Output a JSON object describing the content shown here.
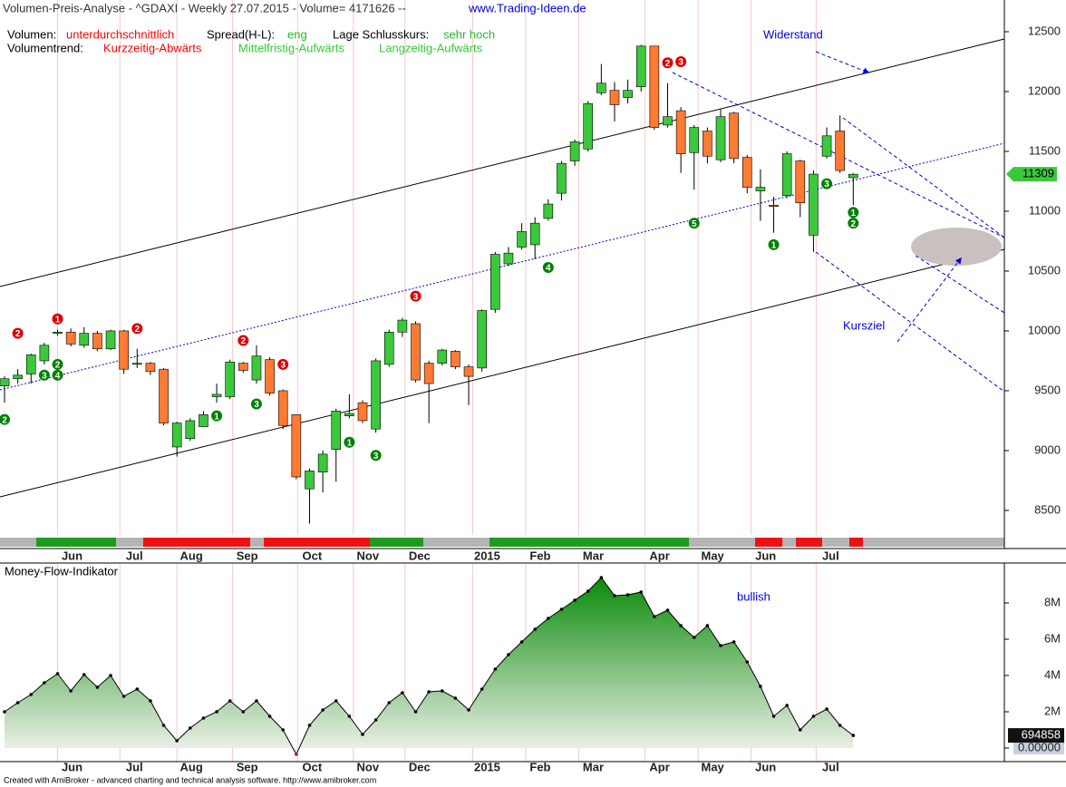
{
  "chart_data": [
    {
      "type": "candlestick",
      "title": "Volumen-Preis-Analyse - ^GDAXI - Weekly  27.07.2015 - Volume= 4171626 --",
      "source": "www.Trading-Ideen.de",
      "info": [
        [
          {
            "text": "Volumen:",
            "color": "#000000"
          },
          {
            "text": "unterdurchschnittlich",
            "color": "#ff0000"
          },
          {
            "text": "Spread(H-L):",
            "color": "#000000"
          },
          {
            "text": "eng",
            "color": "#22bb22"
          },
          {
            "text": "Lage Schlusskurs:",
            "color": "#000000"
          },
          {
            "text": "sehr hoch",
            "color": "#22bb22"
          }
        ],
        [
          {
            "text": "Volumentrend:",
            "color": "#000000"
          },
          {
            "text": "Kurzzeitig-Abwärts",
            "color": "#ff0000"
          },
          {
            "text": "Mittelfristig-Aufwärts",
            "color": "#33cc33"
          },
          {
            "text": "Langzeitig-Aufwärts",
            "color": "#33cc33"
          }
        ]
      ],
      "categories": [
        null,
        null,
        null,
        null,
        null,
        null,
        null,
        null,
        null,
        null,
        null,
        null,
        null,
        null,
        null,
        null,
        null,
        null,
        null,
        null,
        null,
        null,
        null,
        null,
        null,
        null,
        null,
        null,
        null,
        null,
        null,
        null,
        null,
        null,
        null,
        null,
        null,
        null,
        null,
        null,
        null,
        null,
        null,
        null,
        null,
        null,
        null,
        null,
        null,
        null,
        null,
        null,
        null,
        null,
        null,
        null,
        null,
        null,
        null,
        null,
        null,
        null,
        null,
        null,
        null
      ],
      "open": [
        9540,
        9600,
        9640,
        9750,
        9980,
        9990,
        9880,
        9980,
        9850,
        10000,
        9720,
        9730,
        9680,
        9030,
        9100,
        9200,
        9450,
        9450,
        9730,
        9590,
        9760,
        9500,
        9300,
        8680,
        8820,
        9010,
        9290,
        9400,
        9180,
        9720,
        9990,
        10060,
        9730,
        9730,
        9830,
        9700,
        9690,
        10180,
        10560,
        10700,
        10720,
        10940,
        11150,
        11420,
        11520,
        11990,
        12010,
        11950,
        12040,
        12380,
        11720,
        11840,
        11490,
        11670,
        11430,
        11820,
        11450,
        11170,
        11050,
        11130,
        11420,
        10800,
        11460,
        11670,
        11280
      ],
      "high": [
        9620,
        9680,
        9810,
        9900,
        10010,
        10020,
        10030,
        10000,
        10010,
        10010,
        9850,
        9740,
        9690,
        9240,
        9270,
        9330,
        9560,
        9760,
        9740,
        9880,
        9780,
        9510,
        9300,
        8850,
        9000,
        9350,
        9470,
        9420,
        9770,
        10010,
        10110,
        10080,
        9750,
        9850,
        9840,
        9720,
        10180,
        10660,
        10700,
        10900,
        10950,
        11100,
        11420,
        11600,
        11920,
        12230,
        12080,
        12100,
        12390,
        12380,
        12070,
        11870,
        11720,
        11700,
        11850,
        11830,
        11470,
        11350,
        11120,
        11500,
        11430,
        11340,
        11700,
        11800,
        11320
      ],
      "low": [
        9400,
        9560,
        9560,
        9720,
        9960,
        9870,
        9860,
        9830,
        9840,
        9640,
        9690,
        9630,
        9210,
        8950,
        9080,
        9200,
        9400,
        9430,
        9650,
        9560,
        9460,
        9180,
        8760,
        8390,
        8650,
        8740,
        9270,
        9230,
        9150,
        9700,
        9950,
        9570,
        9230,
        9710,
        9680,
        9380,
        9660,
        10150,
        10540,
        10680,
        10600,
        10920,
        11090,
        11380,
        11500,
        11970,
        11750,
        11900,
        12000,
        11680,
        11700,
        11320,
        11180,
        11400,
        11410,
        11400,
        11150,
        10920,
        10820,
        11110,
        10950,
        10660,
        11440,
        11320,
        11050
      ],
      "close": [
        9600,
        9630,
        9800,
        9880,
        9990,
        9890,
        9980,
        9850,
        10000,
        9680,
        9730,
        9660,
        9230,
        9230,
        9250,
        9300,
        9470,
        9740,
        9670,
        9790,
        9480,
        9210,
        8780,
        8830,
        8970,
        9330,
        9310,
        9250,
        9750,
        9990,
        10090,
        9590,
        9560,
        9840,
        9700,
        9620,
        10170,
        10640,
        10650,
        10830,
        10900,
        11060,
        11400,
        11580,
        11900,
        12070,
        11890,
        12010,
        12380,
        11700,
        11790,
        11480,
        11700,
        11460,
        11790,
        11440,
        11200,
        11200,
        11040,
        11480,
        11070,
        11310,
        11630,
        11340,
        11309
      ],
      "up_color": "#3cc83c",
      "down_color": "#ff7a33",
      "ylim": [
        8295,
        12765
      ],
      "yticks": [
        8500,
        9000,
        9500,
        10000,
        10500,
        11000,
        11500,
        12000,
        12500
      ],
      "xticks": [
        {
          "value": 4.0,
          "label": "Jun"
        },
        {
          "value": 8.7,
          "label": "Jul"
        },
        {
          "value": 13.0,
          "label": "Aug"
        },
        {
          "value": 17.2,
          "label": "Sep"
        },
        {
          "value": 22.1,
          "label": "Oct"
        },
        {
          "value": 26.3,
          "label": "Nov"
        },
        {
          "value": 30.2,
          "label": "Dec"
        },
        {
          "value": 35.3,
          "label": "2015"
        },
        {
          "value": 39.3,
          "label": "Feb"
        },
        {
          "value": 43.3,
          "label": "Mar"
        },
        {
          "value": 48.3,
          "label": "Apr"
        },
        {
          "value": 52.3,
          "label": "May"
        },
        {
          "value": 56.3,
          "label": "Jun"
        },
        {
          "value": 61.2,
          "label": "Jul"
        }
      ],
      "signals": [
        {
          "week": 1,
          "price": 9980,
          "label": "2",
          "color": "#dd0000"
        },
        {
          "week": 4,
          "price": 10100,
          "label": "1",
          "color": "#dd0000"
        },
        {
          "week": 10,
          "price": 10020,
          "label": "2",
          "color": "#dd0000"
        },
        {
          "week": 18,
          "price": 9920,
          "label": "2",
          "color": "#dd0000"
        },
        {
          "week": 21,
          "price": 9720,
          "label": "3",
          "color": "#dd0000"
        },
        {
          "week": 31,
          "price": 10290,
          "label": "3",
          "color": "#dd0000"
        },
        {
          "week": 50,
          "price": 12240,
          "label": "2",
          "color": "#dd0000"
        },
        {
          "week": 51,
          "price": 12250,
          "label": "3",
          "color": "#dd0000"
        },
        {
          "week": 0,
          "price": 9260,
          "label": "2",
          "color": "#008000"
        },
        {
          "week": 3,
          "price": 9630,
          "label": "3",
          "color": "#008000"
        },
        {
          "week": 4,
          "price": 9720,
          "label": "2",
          "color": "#008000"
        },
        {
          "week": 4,
          "price": 9630,
          "label": "4",
          "color": "#008000"
        },
        {
          "week": 16,
          "price": 9290,
          "label": "1",
          "color": "#008000"
        },
        {
          "week": 19,
          "price": 9390,
          "label": "3",
          "color": "#008000"
        },
        {
          "week": 26,
          "price": 9070,
          "label": "1",
          "color": "#008000"
        },
        {
          "week": 28,
          "price": 8960,
          "label": "3",
          "color": "#008000"
        },
        {
          "week": 41,
          "price": 10530,
          "label": "4",
          "color": "#008000"
        },
        {
          "week": 52,
          "price": 10900,
          "label": "5",
          "color": "#008000"
        },
        {
          "week": 58,
          "price": 10720,
          "label": "1",
          "color": "#008000"
        },
        {
          "week": 62,
          "price": 11230,
          "label": "3",
          "color": "#008000"
        },
        {
          "week": 64,
          "price": 10990,
          "label": "1",
          "color": "#008000"
        },
        {
          "week": 64,
          "price": 10900,
          "label": "2",
          "color": "#008000"
        }
      ],
      "annotations": [
        "Widerstand",
        "Kursziel"
      ]
    },
    {
      "type": "area",
      "title": "Money-Flow-Indikator",
      "annotation": "bullish",
      "categories": [
        null,
        null,
        null,
        null,
        null,
        null,
        null,
        null,
        null,
        null,
        null,
        null,
        null,
        null,
        null,
        null,
        null,
        null,
        null,
        null,
        null,
        null,
        null,
        null,
        null,
        null,
        null,
        null,
        null,
        null,
        null,
        null,
        null,
        null,
        null,
        null,
        null,
        null,
        null,
        null,
        null,
        null,
        null,
        null,
        null,
        null,
        null,
        null,
        null,
        null,
        null,
        null,
        null,
        null,
        null,
        null,
        null,
        null,
        null,
        null,
        null,
        null,
        null,
        null,
        null
      ],
      "values": [
        2000000,
        2500000,
        2950000,
        3600000,
        4100000,
        3150000,
        4050000,
        3350000,
        4000000,
        2850000,
        3250000,
        2600000,
        1250000,
        400000,
        1100000,
        1650000,
        2000000,
        2600000,
        2000000,
        2600000,
        1750000,
        1000000,
        -350000,
        1250000,
        2100000,
        2600000,
        1750000,
        750000,
        1550000,
        2500000,
        3050000,
        2000000,
        3100000,
        3150000,
        2750000,
        2100000,
        3250000,
        4350000,
        5150000,
        5850000,
        6550000,
        7150000,
        7650000,
        8150000,
        8650000,
        9400000,
        8400000,
        8450000,
        8600000,
        7250000,
        7600000,
        6750000,
        6100000,
        6750000,
        5650000,
        5850000,
        4750000,
        3400000,
        1750000,
        2350000,
        1000000,
        1750000,
        2150000,
        1250000,
        694858
      ],
      "color": "#008000",
      "ylim": [
        -750000,
        10150000
      ],
      "yticks": [
        {
          "value": 0,
          "label": "0.00000"
        },
        {
          "value": 2000000,
          "label": "2M"
        },
        {
          "value": 4000000,
          "label": "4M"
        },
        {
          "value": 6000000,
          "label": "6M"
        },
        {
          "value": 8000000,
          "label": "8M"
        }
      ],
      "xticks": [
        {
          "value": 4.0,
          "label": "Jun"
        },
        {
          "value": 8.7,
          "label": "Jul"
        },
        {
          "value": 13.0,
          "label": "Aug"
        },
        {
          "value": 17.2,
          "label": "Sep"
        },
        {
          "value": 22.1,
          "label": "Oct"
        },
        {
          "value": 26.3,
          "label": "Nov"
        },
        {
          "value": 30.2,
          "label": "Dec"
        },
        {
          "value": 35.3,
          "label": "2015"
        },
        {
          "value": 39.3,
          "label": "Feb"
        },
        {
          "value": 43.3,
          "label": "Mar"
        },
        {
          "value": 48.3,
          "label": "Apr"
        },
        {
          "value": 52.3,
          "label": "May"
        },
        {
          "value": 56.3,
          "label": "Jun"
        },
        {
          "value": 61.2,
          "label": "Jul"
        }
      ]
    }
  ],
  "footer": "Created with AmiBroker - advanced charting and technical analysis software. http://www.amibroker.com"
}
